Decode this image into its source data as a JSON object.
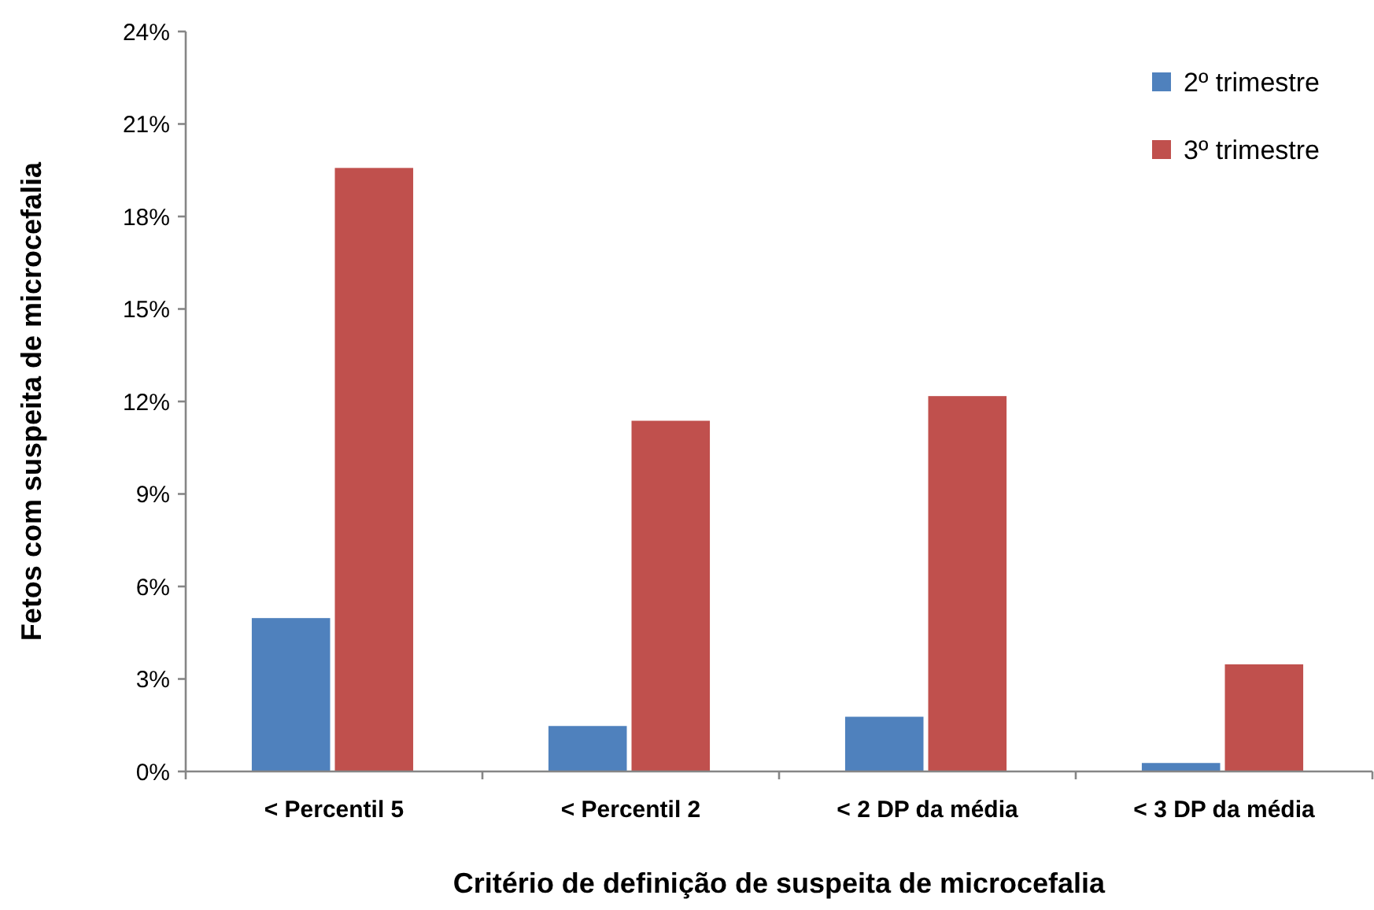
{
  "chart_data": {
    "type": "bar",
    "xlabel": "Critério de definição de suspeita de microcefalia",
    "ylabel": "Fetos com suspeita de microcefalia",
    "categories": [
      "< Percentil 5",
      "< Percentil 2",
      "< 2 DP da média",
      "< 3 DP da média"
    ],
    "series": [
      {
        "name": "2º trimestre",
        "color": "#4f81bd",
        "values": [
          5.0,
          1.5,
          1.8,
          0.3
        ]
      },
      {
        "name": "3º trimestre",
        "color": "#c0504d",
        "values": [
          19.6,
          11.4,
          12.2,
          3.5
        ]
      }
    ],
    "ylim": [
      0,
      24
    ],
    "yticks": [
      {
        "value": 0,
        "label": "0%"
      },
      {
        "value": 3,
        "label": "3%"
      },
      {
        "value": 6,
        "label": "6%"
      },
      {
        "value": 9,
        "label": "9%"
      },
      {
        "value": 12,
        "label": "12%"
      },
      {
        "value": 15,
        "label": "15%"
      },
      {
        "value": 18,
        "label": "18%"
      },
      {
        "value": 21,
        "label": "21%"
      },
      {
        "value": 24,
        "label": "24%"
      }
    ],
    "grid": false,
    "legend": "top right"
  }
}
